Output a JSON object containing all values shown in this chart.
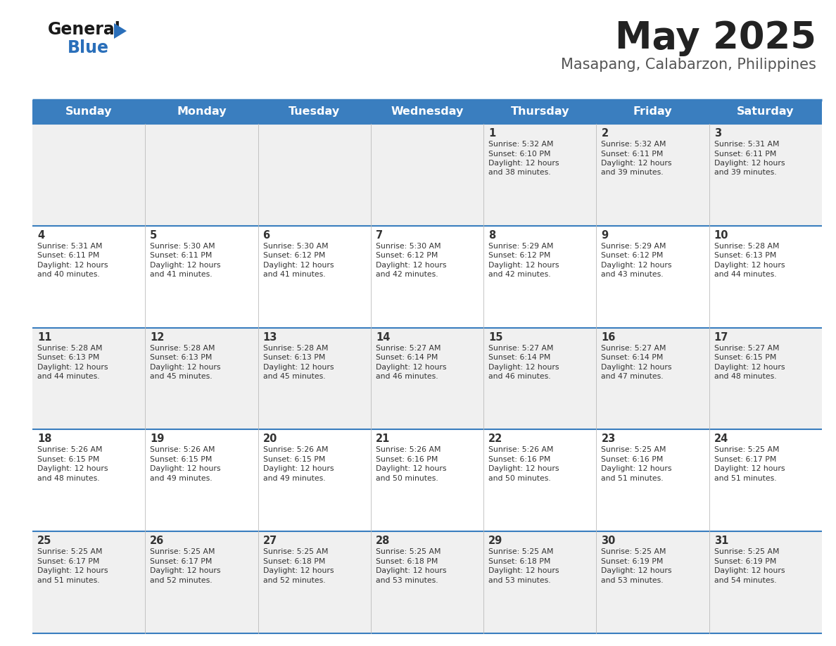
{
  "title": "May 2025",
  "subtitle": "Masapang, Calabarzon, Philippines",
  "days_of_week": [
    "Sunday",
    "Monday",
    "Tuesday",
    "Wednesday",
    "Thursday",
    "Friday",
    "Saturday"
  ],
  "header_bg": "#3a7ebf",
  "header_text": "#ffffff",
  "row_bg_odd": "#f0f0f0",
  "row_bg_even": "#ffffff",
  "cell_text": "#333333",
  "day_num_color": "#333333",
  "title_color": "#222222",
  "subtitle_color": "#555555",
  "divider_color": "#3a7ebf",
  "calendar_data": [
    [
      {
        "day": "",
        "sunrise": "",
        "sunset": "",
        "daylight": ""
      },
      {
        "day": "",
        "sunrise": "",
        "sunset": "",
        "daylight": ""
      },
      {
        "day": "",
        "sunrise": "",
        "sunset": "",
        "daylight": ""
      },
      {
        "day": "",
        "sunrise": "",
        "sunset": "",
        "daylight": ""
      },
      {
        "day": "1",
        "sunrise": "5:32 AM",
        "sunset": "6:10 PM",
        "daylight": "12 hours and 38 minutes."
      },
      {
        "day": "2",
        "sunrise": "5:32 AM",
        "sunset": "6:11 PM",
        "daylight": "12 hours and 39 minutes."
      },
      {
        "day": "3",
        "sunrise": "5:31 AM",
        "sunset": "6:11 PM",
        "daylight": "12 hours and 39 minutes."
      }
    ],
    [
      {
        "day": "4",
        "sunrise": "5:31 AM",
        "sunset": "6:11 PM",
        "daylight": "12 hours and 40 minutes."
      },
      {
        "day": "5",
        "sunrise": "5:30 AM",
        "sunset": "6:11 PM",
        "daylight": "12 hours and 41 minutes."
      },
      {
        "day": "6",
        "sunrise": "5:30 AM",
        "sunset": "6:12 PM",
        "daylight": "12 hours and 41 minutes."
      },
      {
        "day": "7",
        "sunrise": "5:30 AM",
        "sunset": "6:12 PM",
        "daylight": "12 hours and 42 minutes."
      },
      {
        "day": "8",
        "sunrise": "5:29 AM",
        "sunset": "6:12 PM",
        "daylight": "12 hours and 42 minutes."
      },
      {
        "day": "9",
        "sunrise": "5:29 AM",
        "sunset": "6:12 PM",
        "daylight": "12 hours and 43 minutes."
      },
      {
        "day": "10",
        "sunrise": "5:28 AM",
        "sunset": "6:13 PM",
        "daylight": "12 hours and 44 minutes."
      }
    ],
    [
      {
        "day": "11",
        "sunrise": "5:28 AM",
        "sunset": "6:13 PM",
        "daylight": "12 hours and 44 minutes."
      },
      {
        "day": "12",
        "sunrise": "5:28 AM",
        "sunset": "6:13 PM",
        "daylight": "12 hours and 45 minutes."
      },
      {
        "day": "13",
        "sunrise": "5:28 AM",
        "sunset": "6:13 PM",
        "daylight": "12 hours and 45 minutes."
      },
      {
        "day": "14",
        "sunrise": "5:27 AM",
        "sunset": "6:14 PM",
        "daylight": "12 hours and 46 minutes."
      },
      {
        "day": "15",
        "sunrise": "5:27 AM",
        "sunset": "6:14 PM",
        "daylight": "12 hours and 46 minutes."
      },
      {
        "day": "16",
        "sunrise": "5:27 AM",
        "sunset": "6:14 PM",
        "daylight": "12 hours and 47 minutes."
      },
      {
        "day": "17",
        "sunrise": "5:27 AM",
        "sunset": "6:15 PM",
        "daylight": "12 hours and 48 minutes."
      }
    ],
    [
      {
        "day": "18",
        "sunrise": "5:26 AM",
        "sunset": "6:15 PM",
        "daylight": "12 hours and 48 minutes."
      },
      {
        "day": "19",
        "sunrise": "5:26 AM",
        "sunset": "6:15 PM",
        "daylight": "12 hours and 49 minutes."
      },
      {
        "day": "20",
        "sunrise": "5:26 AM",
        "sunset": "6:15 PM",
        "daylight": "12 hours and 49 minutes."
      },
      {
        "day": "21",
        "sunrise": "5:26 AM",
        "sunset": "6:16 PM",
        "daylight": "12 hours and 50 minutes."
      },
      {
        "day": "22",
        "sunrise": "5:26 AM",
        "sunset": "6:16 PM",
        "daylight": "12 hours and 50 minutes."
      },
      {
        "day": "23",
        "sunrise": "5:25 AM",
        "sunset": "6:16 PM",
        "daylight": "12 hours and 51 minutes."
      },
      {
        "day": "24",
        "sunrise": "5:25 AM",
        "sunset": "6:17 PM",
        "daylight": "12 hours and 51 minutes."
      }
    ],
    [
      {
        "day": "25",
        "sunrise": "5:25 AM",
        "sunset": "6:17 PM",
        "daylight": "12 hours and 51 minutes."
      },
      {
        "day": "26",
        "sunrise": "5:25 AM",
        "sunset": "6:17 PM",
        "daylight": "12 hours and 52 minutes."
      },
      {
        "day": "27",
        "sunrise": "5:25 AM",
        "sunset": "6:18 PM",
        "daylight": "12 hours and 52 minutes."
      },
      {
        "day": "28",
        "sunrise": "5:25 AM",
        "sunset": "6:18 PM",
        "daylight": "12 hours and 53 minutes."
      },
      {
        "day": "29",
        "sunrise": "5:25 AM",
        "sunset": "6:18 PM",
        "daylight": "12 hours and 53 minutes."
      },
      {
        "day": "30",
        "sunrise": "5:25 AM",
        "sunset": "6:19 PM",
        "daylight": "12 hours and 53 minutes."
      },
      {
        "day": "31",
        "sunrise": "5:25 AM",
        "sunset": "6:19 PM",
        "daylight": "12 hours and 54 minutes."
      }
    ]
  ]
}
